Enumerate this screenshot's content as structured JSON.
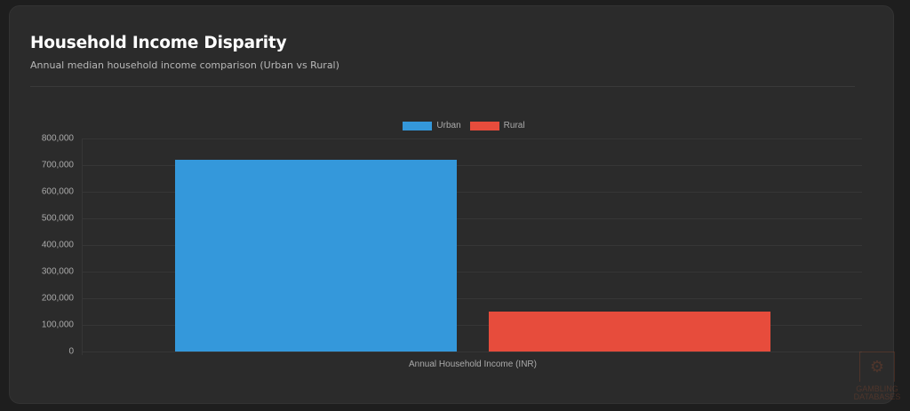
{
  "header": {
    "title": "Household Income Disparity",
    "subtitle": "Annual median household income comparison (Urban vs Rural)"
  },
  "legend": [
    {
      "label": "Urban",
      "color": "#3498db"
    },
    {
      "label": "Rural",
      "color": "#e74c3c"
    }
  ],
  "y_ticks": [
    "800,000",
    "700,000",
    "600,000",
    "500,000",
    "400,000",
    "300,000",
    "200,000",
    "100,000",
    "0"
  ],
  "x_label": "Annual Household Income (INR)",
  "watermark": {
    "line1": "GAMBLING",
    "line2": "DATABASES"
  },
  "chart_data": {
    "type": "bar",
    "title": "Household Income Disparity",
    "subtitle": "Annual median household income comparison (Urban vs Rural)",
    "categories": [
      "Annual Household Income (INR)"
    ],
    "series": [
      {
        "name": "Urban",
        "values": [
          720000
        ],
        "color": "#3498db"
      },
      {
        "name": "Rural",
        "values": [
          150000
        ],
        "color": "#e74c3c"
      }
    ],
    "xlabel": "Annual Household Income (INR)",
    "ylabel": "",
    "ylim": [
      0,
      800000
    ],
    "y_tick_step": 100000,
    "grid": true,
    "legend_position": "top"
  }
}
